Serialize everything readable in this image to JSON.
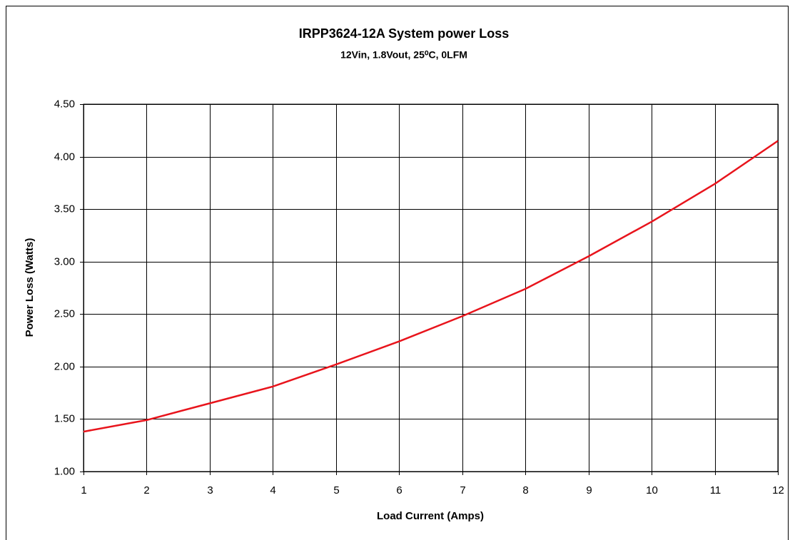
{
  "chart_data": {
    "type": "line",
    "title": "IRPP3624-12A System power Loss",
    "subtitle": "12Vin, 1.8Vout, 25⁰C, 0LFM",
    "x_label": "Load Current (Amps)",
    "y_label": "Power Loss (Watts)",
    "x": [
      1,
      2,
      3,
      4,
      5,
      6,
      7,
      8,
      9,
      10,
      11,
      12
    ],
    "series": [
      {
        "name": "System power Loss",
        "color": "#e8141c",
        "values": [
          1.38,
          1.49,
          1.65,
          1.81,
          2.02,
          2.24,
          2.48,
          2.74,
          3.05,
          3.38,
          3.74,
          4.15
        ]
      }
    ],
    "xlim": [
      1,
      12
    ],
    "xticks": [
      1,
      2,
      3,
      4,
      5,
      6,
      7,
      8,
      9,
      10,
      11,
      12
    ],
    "ylim": [
      1,
      4.5
    ],
    "yticks": [
      {
        "value": 1,
        "label": "1.00"
      },
      {
        "value": 1.5,
        "label": "1.50"
      },
      {
        "value": 2,
        "label": "2.00"
      },
      {
        "value": 2.5,
        "label": "2.50"
      },
      {
        "value": 3,
        "label": "3.00"
      },
      {
        "value": 3.5,
        "label": "3.50"
      },
      {
        "value": 4,
        "label": "4.00"
      },
      {
        "value": 4.5,
        "label": "4.50"
      }
    ],
    "grid": true
  }
}
